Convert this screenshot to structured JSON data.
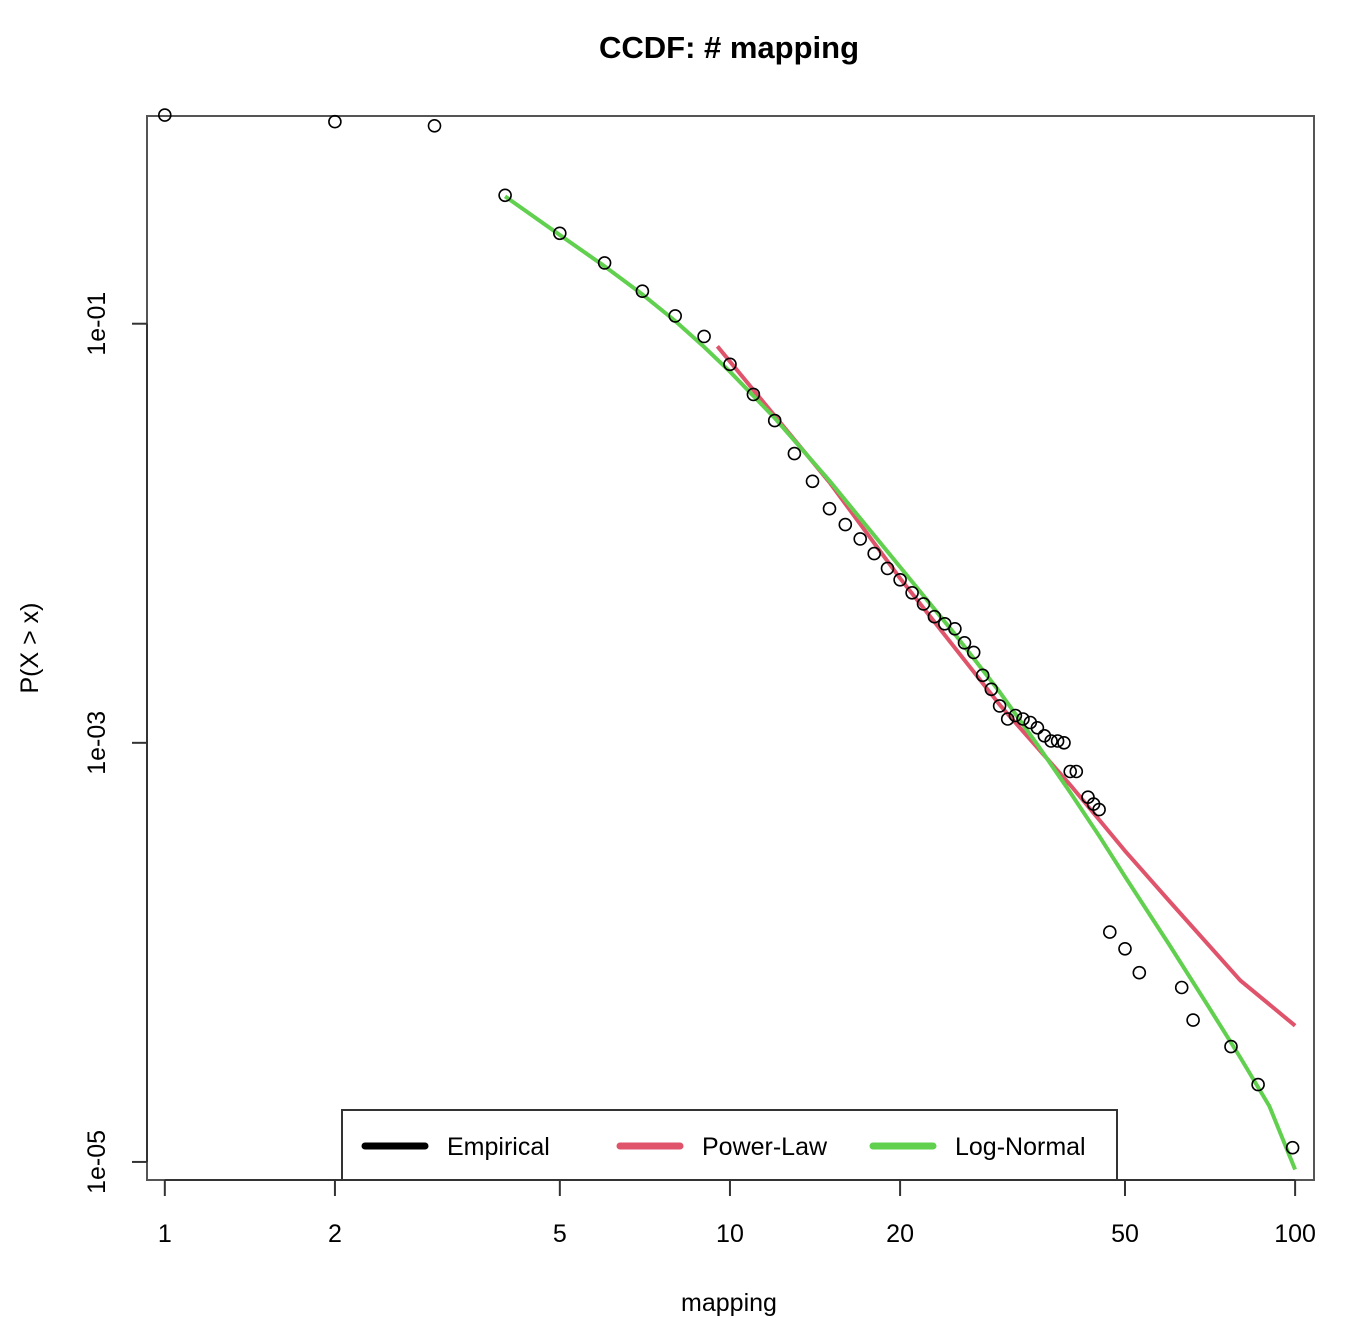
{
  "chart_data": {
    "type": "scatter",
    "title": "CCDF: # mapping",
    "xlabel": "mapping",
    "ylabel": "P(X > x)",
    "x_scale": "log",
    "y_scale": "log",
    "xlim": [
      0.93,
      108
    ],
    "ylim": [
      8.2e-06,
      0.98
    ],
    "x_ticks": [
      {
        "value": 1,
        "label": "1"
      },
      {
        "value": 2,
        "label": "2"
      },
      {
        "value": 5,
        "label": "5"
      },
      {
        "value": 10,
        "label": "10"
      },
      {
        "value": 20,
        "label": "20"
      },
      {
        "value": 50,
        "label": "50"
      },
      {
        "value": 100,
        "label": "100"
      }
    ],
    "y_ticks": [
      {
        "value": 0.1,
        "label": "1e-01"
      },
      {
        "value": 0.001,
        "label": "1e-03"
      },
      {
        "value": 1e-05,
        "label": "1e-05"
      }
    ],
    "legend": {
      "position": "bottom",
      "entries": [
        {
          "label": "Empirical",
          "color": "#000000"
        },
        {
          "label": "Power-Law",
          "color": "#DF536B"
        },
        {
          "label": "Log-Normal",
          "color": "#61D04F"
        }
      ]
    },
    "series": [
      {
        "name": "Empirical",
        "kind": "points",
        "color": "#000000",
        "x": [
          1,
          2,
          3,
          4,
          5,
          6,
          7,
          8,
          9,
          10,
          11,
          12,
          13,
          14,
          15,
          16,
          17,
          18,
          19,
          20,
          21,
          22,
          23,
          24,
          25,
          26,
          27,
          28,
          29,
          30,
          31,
          32,
          33,
          34,
          35,
          36,
          37,
          38,
          39,
          40,
          41,
          43,
          44,
          45,
          47,
          50,
          53,
          63,
          66,
          77,
          86,
          99
        ],
        "y": [
          0.99,
          0.92,
          0.88,
          0.41,
          0.27,
          0.195,
          0.143,
          0.109,
          0.087,
          0.064,
          0.046,
          0.0345,
          0.024,
          0.0177,
          0.0131,
          0.011,
          0.0094,
          0.008,
          0.0068,
          0.006,
          0.0052,
          0.0046,
          0.004,
          0.0037,
          0.0035,
          0.003,
          0.0027,
          0.0021,
          0.0018,
          0.0015,
          0.0013,
          0.00135,
          0.0013,
          0.00125,
          0.00118,
          0.00108,
          0.00102,
          0.00102,
          0.001,
          0.00073,
          0.00073,
          0.00055,
          0.00051,
          0.00048,
          0.000125,
          0.000104,
          8e-05,
          6.8e-05,
          4.75e-05,
          3.55e-05,
          2.34e-05,
          1.17e-05
        ]
      },
      {
        "name": "Power-Law",
        "kind": "line",
        "color": "#DF536B",
        "x": [
          9.5,
          15,
          20,
          30,
          40,
          50,
          60,
          80,
          100
        ],
        "y": [
          0.078,
          0.0175,
          0.0061,
          0.00152,
          0.00063,
          0.000305,
          0.000175,
          7.35e-05,
          4.47e-05
        ]
      },
      {
        "name": "Log-Normal",
        "kind": "line",
        "color": "#61D04F",
        "x": [
          4,
          5,
          6,
          7,
          8,
          9,
          10,
          12,
          15,
          20,
          25,
          30,
          35,
          40,
          45,
          50,
          60,
          70,
          80,
          90,
          100
        ],
        "y": [
          0.405,
          0.265,
          0.188,
          0.138,
          0.103,
          0.0775,
          0.059,
          0.0355,
          0.0178,
          0.0069,
          0.0033,
          0.00175,
          0.00098,
          0.00058,
          0.00036,
          0.00023,
          0.000108,
          5.6e-05,
          3.15e-05,
          1.85e-05,
          9.2e-06
        ]
      }
    ]
  }
}
